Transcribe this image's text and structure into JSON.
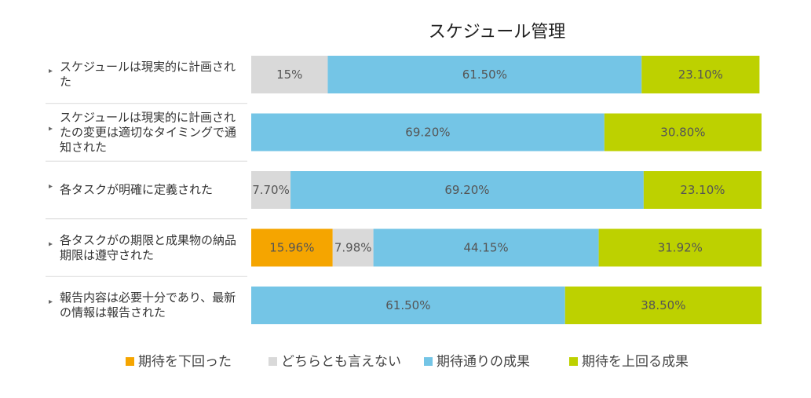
{
  "chart_data": {
    "type": "stacked-bar-horizontal-percent",
    "title": "スケジュール管理",
    "categories": [
      "スケジュールは現実的に計画された",
      "スケジュールは現実的に計画されたの変更は適切なタイミングで通知された",
      "各タスクが明確に定義された",
      "各タスクがの期限と成果物の納品期限は遵守された",
      "報告内容は必要十分であり、最新の情報は報告された"
    ],
    "xlim": [
      0,
      100
    ],
    "series": [
      {
        "name": "期待を下回った",
        "color": "#f5a500",
        "values": [
          null,
          null,
          null,
          15.96,
          null
        ],
        "value_labels": [
          null,
          null,
          null,
          "15.96%",
          null
        ]
      },
      {
        "name": "どちらとも言えない",
        "color": "#d9d9d9",
        "values": [
          15,
          null,
          7.7,
          7.98,
          null
        ],
        "value_labels": [
          "15%",
          null,
          "7.70%",
          "7.98%",
          null
        ]
      },
      {
        "name": "期待通りの成果",
        "color": "#74c5e6",
        "values": [
          61.5,
          69.2,
          69.2,
          44.15,
          61.5
        ],
        "value_labels": [
          "61.50%",
          "69.20%",
          "69.20%",
          "44.15%",
          "61.50%"
        ]
      },
      {
        "name": "期待を上回る成果",
        "color": "#bdd100",
        "values": [
          23.1,
          30.8,
          23.1,
          31.92,
          38.5
        ],
        "value_labels": [
          "23.10%",
          "30.80%",
          "23.10%",
          "31.92%",
          "38.50%"
        ]
      }
    ],
    "legend": "bottom"
  }
}
